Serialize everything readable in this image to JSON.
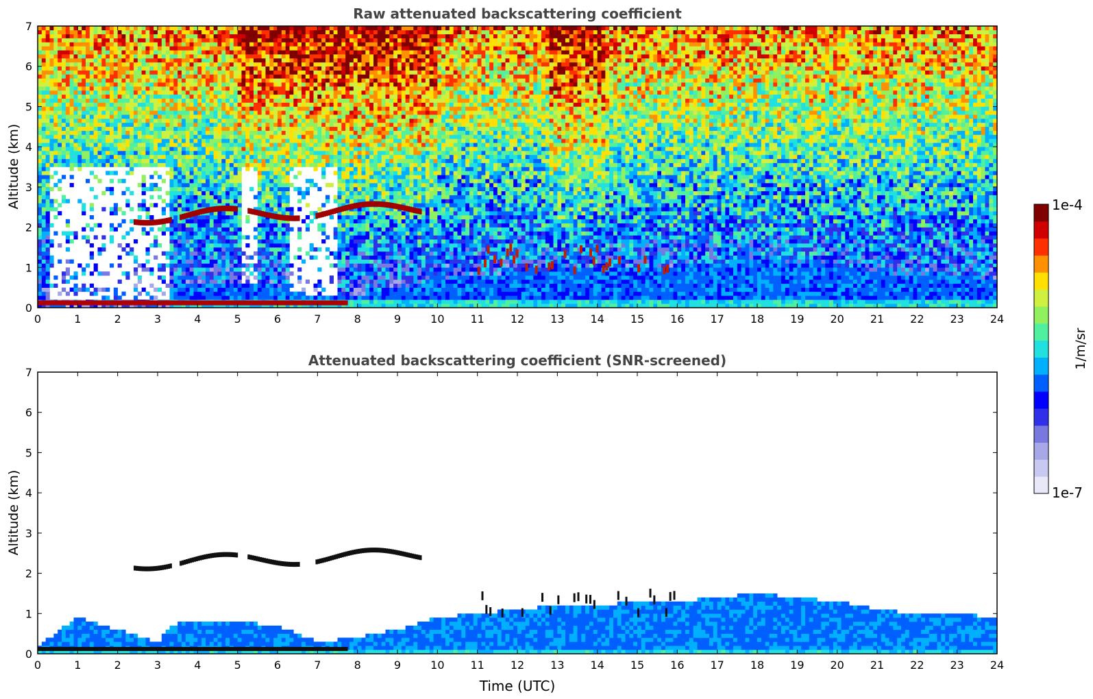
{
  "figure": {
    "colorbar": {
      "label": "1/m/sr",
      "max_label": "1e-4",
      "min_label": "1e-7",
      "vmin": 1e-07,
      "vmax": 0.0001,
      "scale": "log",
      "colormap": "jet",
      "colors": [
        "#e8e8f8",
        "#c8c8f0",
        "#a8a8e8",
        "#7878e0",
        "#3030e8",
        "#0000ff",
        "#0060ff",
        "#00b0ff",
        "#20e0e0",
        "#50f0a0",
        "#90f060",
        "#d0f040",
        "#ffe000",
        "#ff9000",
        "#ff3000",
        "#d00000",
        "#800000"
      ]
    }
  },
  "chart_data": [
    {
      "id": "raw",
      "type": "heatmap",
      "title": "Raw attenuated backscattering coefficient",
      "xlabel": "",
      "ylabel": "Altitude (km)",
      "xlim": [
        0,
        24
      ],
      "ylim": [
        0,
        7
      ],
      "xticks": [
        "0",
        "1",
        "2",
        "3",
        "4",
        "5",
        "6",
        "7",
        "8",
        "9",
        "10",
        "11",
        "12",
        "13",
        "14",
        "15",
        "16",
        "17",
        "18",
        "19",
        "20",
        "21",
        "22",
        "23",
        "24"
      ],
      "yticks": [
        "0",
        "1",
        "2",
        "3",
        "4",
        "5",
        "6",
        "7"
      ],
      "grid": false,
      "features": {
        "elevated_cloud_layer": {
          "x": [
            2.4,
            9.6
          ],
          "altitude_km": [
            2.2,
            2.5
          ],
          "value": "high (~1e-4)"
        },
        "surface_layer": {
          "x": [
            0,
            7.7
          ],
          "altitude_km": [
            0.0,
            0.2
          ],
          "value": "high (~1e-4)"
        },
        "aerosol_boundary_layer": {
          "x": [
            3.3,
            24
          ],
          "altitude_km": [
            0.0,
            0.8
          ],
          "value": "low (~1e-6)"
        },
        "scattered_clouds": {
          "x": [
            11,
            16
          ],
          "altitude_km": [
            0.9,
            1.5
          ]
        },
        "noise_region": {
          "altitude_km": [
            2,
            7
          ],
          "value": "noisy, increasing with altitude"
        }
      }
    },
    {
      "id": "screened",
      "type": "heatmap",
      "title": "Attenuated backscattering coefficient (SNR-screened)",
      "xlabel": "Time (UTC)",
      "ylabel": "Altitude (km)",
      "xlim": [
        0,
        24
      ],
      "ylim": [
        0,
        7
      ],
      "xticks": [
        "0",
        "1",
        "2",
        "3",
        "4",
        "5",
        "6",
        "7",
        "8",
        "9",
        "10",
        "11",
        "12",
        "13",
        "14",
        "15",
        "16",
        "17",
        "18",
        "19",
        "20",
        "21",
        "22",
        "23",
        "24"
      ],
      "yticks": [
        "0",
        "1",
        "2",
        "3",
        "4",
        "5",
        "6",
        "7"
      ],
      "grid": false,
      "features": {
        "elevated_cloud_layer": {
          "x": [
            2.4,
            9.6
          ],
          "altitude_km": [
            2.2,
            2.5
          ],
          "value": "saturated (black)"
        },
        "surface_layer": {
          "x": [
            0,
            7.7
          ],
          "altitude_km": [
            0.0,
            0.2
          ],
          "value": "saturated (black)"
        },
        "boundary_layer_top_km": {
          "x": [
            0,
            1,
            2,
            3,
            3.5,
            5,
            6,
            7,
            8,
            9,
            10,
            11,
            12,
            13,
            14,
            15,
            16,
            17,
            18,
            19,
            20,
            21,
            22,
            23,
            24
          ],
          "y": [
            0.2,
            0.9,
            0.6,
            0.3,
            0.8,
            0.8,
            0.7,
            0.3,
            0.4,
            0.6,
            0.9,
            1.0,
            1.1,
            1.2,
            1.2,
            1.3,
            1.3,
            1.4,
            1.5,
            1.4,
            1.3,
            1.1,
            1.0,
            1.0,
            0.9
          ]
        }
      }
    }
  ]
}
